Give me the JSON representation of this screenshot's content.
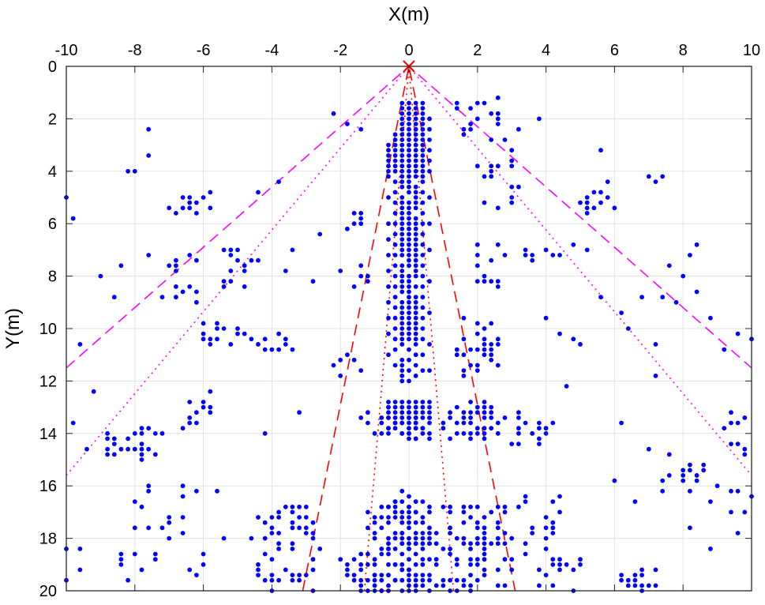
{
  "chart_data": {
    "type": "scatter",
    "title": "",
    "xlabel": "X(m)",
    "ylabel": "Y(m)",
    "xlim": [
      -10,
      10
    ],
    "ylim": [
      0,
      20
    ],
    "y_reversed": true,
    "x_axis_location": "top",
    "grid": true,
    "legend": "none",
    "xticks": [
      -10,
      -8,
      -6,
      -4,
      -2,
      0,
      2,
      4,
      6,
      8,
      10
    ],
    "yticks": [
      0,
      2,
      4,
      6,
      8,
      10,
      12,
      14,
      16,
      18,
      20
    ],
    "origin_marker": {
      "x": 0,
      "y": 0,
      "color": "#ff0000",
      "style": "x"
    },
    "lines": [
      {
        "style": "dashed",
        "color": "#ff00ff",
        "x": [
          -10,
          0,
          10
        ],
        "y": [
          11.5,
          0,
          11.5
        ]
      },
      {
        "style": "dotted",
        "color": "#ff00ff",
        "x": [
          -10,
          0,
          10
        ],
        "y": [
          15.6,
          0,
          15.6
        ]
      },
      {
        "style": "dashed",
        "color": "#ff0000",
        "x": [
          -3.1,
          0,
          3.1
        ],
        "y": [
          20,
          0,
          20
        ]
      },
      {
        "style": "dotted",
        "color": "#ff0000",
        "x": [
          -1.3,
          0,
          1.3
        ],
        "y": [
          20,
          0,
          20
        ]
      }
    ],
    "point_color": "#0000ff",
    "point_columns": [
      {
        "x": -0.2,
        "y": [
          1.4,
          1.6,
          1.8,
          2.0,
          2.2,
          2.4,
          2.6,
          2.8,
          3.0,
          3.2,
          3.4,
          3.6,
          3.8,
          4.0,
          4.2,
          4.4,
          4.6,
          5.0,
          5.2,
          5.4,
          5.6,
          5.8,
          6.0,
          6.2,
          6.4,
          6.6,
          6.8,
          7.0,
          7.2,
          7.6,
          7.8,
          8.0,
          8.2,
          8.4,
          8.6,
          9.0,
          9.2,
          9.4,
          9.6,
          9.8,
          10.0,
          10.2,
          10.4,
          10.6,
          11.2,
          11.4,
          11.6,
          11.8,
          12.0,
          12.8,
          13.0,
          13.2,
          13.4,
          13.6,
          14.0,
          16.2,
          16.6,
          17.0,
          17.4,
          17.8,
          18.2,
          18.6,
          19.2,
          19.6,
          20.0
        ]
      },
      {
        "x": 0.0,
        "y": [
          1.4,
          1.6,
          1.8,
          2.0,
          2.2,
          2.4,
          2.6,
          2.8,
          3.0,
          3.2,
          3.4,
          3.6,
          3.8,
          4.0,
          4.2,
          4.4,
          4.6,
          4.8,
          5.2,
          5.4,
          5.6,
          5.8,
          6.0,
          6.2,
          6.4,
          6.6,
          6.8,
          7.0,
          7.2,
          7.4,
          7.6,
          8.0,
          8.2,
          8.4,
          8.6,
          8.8,
          9.0,
          9.2,
          9.4,
          9.6,
          9.8,
          10.0,
          10.2,
          10.4,
          10.8,
          11.2,
          11.6,
          12.0,
          12.8,
          13.0,
          13.2,
          13.4,
          13.6,
          13.8,
          14.0,
          14.2,
          16.4,
          16.8,
          17.2,
          17.6,
          18.0,
          18.4,
          18.8,
          19.2,
          19.6,
          20.0
        ]
      },
      {
        "x": 0.2,
        "y": [
          1.4,
          1.6,
          1.8,
          2.0,
          2.2,
          2.4,
          2.6,
          2.8,
          3.0,
          3.2,
          3.4,
          3.6,
          3.8,
          4.0,
          4.2,
          4.6,
          4.8,
          5.0,
          5.2,
          5.4,
          5.8,
          6.0,
          6.2,
          6.4,
          6.6,
          6.8,
          7.0,
          7.2,
          7.4,
          7.6,
          7.8,
          8.0,
          8.4,
          8.8,
          9.0,
          9.2,
          9.4,
          9.6,
          9.8,
          10.0,
          10.2,
          10.4,
          10.6,
          11.0,
          11.4,
          11.8,
          12.8,
          13.0,
          13.2,
          13.4,
          13.6,
          13.8,
          14.2,
          16.6,
          17.0,
          17.4,
          17.8,
          18.2,
          18.6,
          19.0,
          19.4,
          19.8
        ]
      },
      {
        "x": 0.4,
        "y": [
          1.4,
          1.6,
          1.8,
          2.0,
          2.2,
          2.4,
          2.6,
          2.8,
          3.0,
          3.2,
          3.4,
          3.6,
          3.8,
          4.0,
          4.2,
          4.4,
          4.8,
          5.2,
          5.6,
          6.0,
          6.4,
          6.8,
          7.2,
          7.6,
          8.0,
          8.4,
          8.8,
          9.2,
          9.6,
          10.0,
          10.4,
          11.0,
          11.6,
          12.8,
          13.0,
          13.2,
          13.4,
          13.8,
          16.6,
          17.2,
          17.8,
          18.4,
          19.0,
          19.6
        ]
      },
      {
        "x": -0.4,
        "y": [
          2.6,
          2.8,
          3.0,
          3.2,
          3.4,
          3.6,
          3.8,
          4.0,
          4.4,
          4.8,
          5.2,
          5.6,
          6.0,
          6.4,
          6.8,
          7.2,
          7.6,
          8.0,
          8.4,
          8.8,
          9.2,
          9.6,
          10.0,
          10.4,
          10.8,
          11.4,
          12.8,
          13.0,
          13.2,
          13.4,
          13.6,
          13.8,
          16.6,
          17.2,
          17.8,
          18.4,
          19.0,
          19.6
        ]
      },
      {
        "x": -0.6,
        "y": [
          3.0,
          3.2,
          3.4,
          3.6,
          3.8,
          4.0,
          4.2,
          5.0,
          6.0,
          6.6,
          7.2,
          7.8,
          8.4,
          9.0,
          9.6,
          10.2,
          11.0,
          12.8,
          13.0,
          13.2,
          13.4,
          13.8,
          14.0,
          16.8,
          17.4,
          18.0,
          18.4,
          18.6,
          19.0,
          19.4,
          19.8,
          20.0
        ]
      },
      {
        "x": 0.6,
        "y": [
          2.0,
          2.4,
          2.8,
          3.2,
          3.6,
          4.0,
          5.0,
          6.0,
          7.0,
          8.2,
          9.4,
          10.6,
          11.6,
          12.8,
          13.0,
          13.2,
          13.4,
          13.6,
          14.0,
          17.0,
          17.6,
          18.2,
          18.8,
          19.4,
          20.0
        ]
      }
    ],
    "point_clusters": [
      {
        "x0": 1.0,
        "x1": 2.8,
        "y0": 12.8,
        "y1": 14.2,
        "n": 55
      },
      {
        "x0": -1.4,
        "x1": 1.0,
        "y0": 13.0,
        "y1": 14.2,
        "n": 30
      },
      {
        "x0": -1.2,
        "x1": 3.0,
        "y0": 16.6,
        "y1": 20.0,
        "n": 150
      },
      {
        "x0": -4.6,
        "x1": -2.6,
        "y0": 16.8,
        "y1": 20.0,
        "n": 55
      },
      {
        "x0": -2.0,
        "x1": -0.8,
        "y0": 18.4,
        "y1": 20.0,
        "n": 30
      },
      {
        "x0": 3.2,
        "x1": 4.4,
        "y0": 16.2,
        "y1": 20.0,
        "n": 25
      },
      {
        "x0": 6.2,
        "x1": 7.4,
        "y0": 19.2,
        "y1": 20.0,
        "n": 18
      },
      {
        "x0": -8.8,
        "x1": -7.0,
        "y0": 13.8,
        "y1": 15.0,
        "n": 28
      },
      {
        "x0": -6.4,
        "x1": -5.8,
        "y0": 12.8,
        "y1": 13.8,
        "n": 10
      },
      {
        "x0": -6.2,
        "x1": -4.8,
        "y0": 9.8,
        "y1": 10.8,
        "n": 18
      },
      {
        "x0": -4.8,
        "x1": -3.4,
        "y0": 10.2,
        "y1": 10.9,
        "n": 10
      },
      {
        "x0": -5.4,
        "x1": -4.4,
        "y0": 6.8,
        "y1": 8.6,
        "n": 16
      },
      {
        "x0": -7.6,
        "x1": -6.2,
        "y0": 7.2,
        "y1": 9.0,
        "n": 14
      },
      {
        "x0": -7.0,
        "x1": -5.8,
        "y0": 4.8,
        "y1": 5.6,
        "n": 14
      },
      {
        "x0": 1.4,
        "x1": 2.8,
        "y0": 9.6,
        "y1": 11.8,
        "n": 30
      },
      {
        "x0": 3.0,
        "x1": 4.2,
        "y0": 13.2,
        "y1": 14.6,
        "n": 18
      },
      {
        "x0": 2.0,
        "x1": 3.0,
        "y0": 6.6,
        "y1": 8.4,
        "n": 12
      },
      {
        "x0": 1.0,
        "x1": 2.8,
        "y0": 1.2,
        "y1": 3.0,
        "n": 20
      },
      {
        "x0": 2.0,
        "x1": 3.0,
        "y0": 3.0,
        "y1": 5.6,
        "n": 14
      },
      {
        "x0": 3.4,
        "x1": 4.4,
        "y0": 7.0,
        "y1": 7.4,
        "n": 10
      },
      {
        "x0": 5.0,
        "x1": 6.0,
        "y0": 4.8,
        "y1": 5.6,
        "n": 12
      },
      {
        "x0": 7.2,
        "x1": 8.8,
        "y0": 15.2,
        "y1": 16.2,
        "n": 14
      },
      {
        "x0": 9.0,
        "x1": 10.0,
        "y0": 13.2,
        "y1": 14.8,
        "n": 10
      },
      {
        "x0": -10.0,
        "x1": -8.0,
        "y0": 18.4,
        "y1": 20.0,
        "n": 10
      },
      {
        "x0": -8.0,
        "x1": -5.8,
        "y0": 16.0,
        "y1": 19.4,
        "n": 24
      },
      {
        "x0": -2.2,
        "x1": -1.2,
        "y0": 7.6,
        "y1": 8.4,
        "n": 6
      },
      {
        "x0": -2.2,
        "x1": -1.4,
        "y0": 10.8,
        "y1": 11.8,
        "n": 8
      },
      {
        "x0": -1.8,
        "x1": -1.2,
        "y0": 5.6,
        "y1": 6.4,
        "n": 6
      },
      {
        "x0": 4.2,
        "x1": 5.0,
        "y0": 18.6,
        "y1": 20.0,
        "n": 8
      },
      {
        "x0": 8.0,
        "x1": 10.0,
        "y0": 16.0,
        "y1": 18.6,
        "n": 10
      }
    ],
    "extra_points": [
      [
        -7.6,
        2.4
      ],
      [
        -7.6,
        3.4
      ],
      [
        -8.2,
        4.0
      ],
      [
        -8.0,
        4.0
      ],
      [
        -10.0,
        5.0
      ],
      [
        -9.8,
        5.8
      ],
      [
        -9.0,
        8.0
      ],
      [
        -8.4,
        7.6
      ],
      [
        -8.6,
        8.8
      ],
      [
        -9.6,
        10.6
      ],
      [
        -9.2,
        12.4
      ],
      [
        -9.8,
        13.6
      ],
      [
        -9.4,
        14.6
      ],
      [
        -4.4,
        4.8
      ],
      [
        -3.8,
        4.4
      ],
      [
        -2.6,
        6.4
      ],
      [
        -3.4,
        7.0
      ],
      [
        -3.6,
        7.8
      ],
      [
        -2.8,
        8.2
      ],
      [
        -2.2,
        1.8
      ],
      [
        -1.8,
        2.2
      ],
      [
        -1.4,
        2.4
      ],
      [
        -3.2,
        13.2
      ],
      [
        -4.2,
        14.0
      ],
      [
        -5.8,
        12.4
      ],
      [
        -6.6,
        13.8
      ],
      [
        -5.6,
        16.2
      ],
      [
        -5.4,
        18.0
      ],
      [
        5.6,
        3.2
      ],
      [
        5.8,
        4.4
      ],
      [
        7.0,
        4.2
      ],
      [
        7.4,
        4.2
      ],
      [
        7.2,
        4.4
      ],
      [
        8.4,
        6.8
      ],
      [
        8.2,
        7.2
      ],
      [
        7.6,
        7.6
      ],
      [
        8.0,
        8.0
      ],
      [
        8.4,
        8.6
      ],
      [
        8.8,
        9.6
      ],
      [
        7.8,
        9.0
      ],
      [
        6.8,
        8.8
      ],
      [
        7.4,
        8.8
      ],
      [
        6.2,
        9.4
      ],
      [
        6.4,
        10.0
      ],
      [
        7.2,
        10.6
      ],
      [
        9.2,
        10.8
      ],
      [
        10.0,
        10.4
      ],
      [
        9.6,
        10.2
      ],
      [
        5.6,
        8.8
      ],
      [
        5.2,
        7.0
      ],
      [
        4.8,
        6.8
      ],
      [
        3.2,
        4.6
      ],
      [
        3.8,
        2.0
      ],
      [
        3.2,
        2.4
      ],
      [
        4.4,
        10.2
      ],
      [
        4.0,
        9.6
      ],
      [
        4.8,
        10.4
      ],
      [
        4.6,
        12.2
      ],
      [
        5.0,
        10.6
      ],
      [
        7.2,
        11.8
      ],
      [
        6.2,
        13.6
      ],
      [
        6.0,
        15.8
      ],
      [
        6.6,
        16.6
      ],
      [
        7.0,
        14.6
      ],
      [
        7.6,
        14.8
      ]
    ]
  }
}
